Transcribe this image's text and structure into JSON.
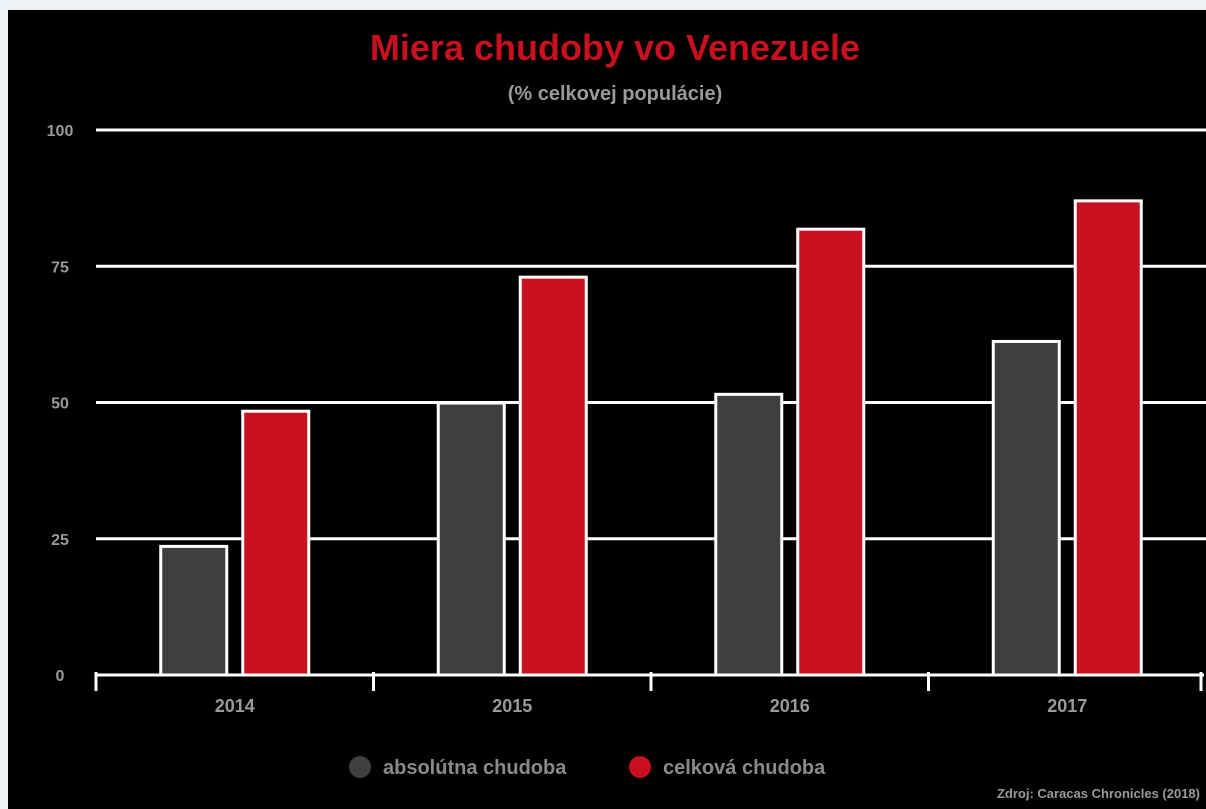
{
  "chart_data": {
    "type": "bar",
    "title": "Miera chudoby vo Venezuele",
    "subtitle": "(% celkovej populácie)",
    "source": "Zdroj: Caracas Chronicles (2018)",
    "categories": [
      "2014",
      "2015",
      "2016",
      "2017"
    ],
    "series": [
      {
        "name": "absolútna chudoba",
        "values": [
          23.6,
          49.9,
          51.5,
          61.2
        ],
        "color": "#3f3f3f"
      },
      {
        "name": "celková chudoba",
        "values": [
          48.4,
          73.0,
          81.8,
          87.0
        ],
        "color": "#c8101e"
      }
    ],
    "ylim": [
      0,
      100
    ],
    "yticks": [
      0,
      25,
      50,
      75,
      100
    ],
    "grid": true,
    "legend_position": "bottom",
    "colors": {
      "background": "#000000",
      "grid": "#ffffff",
      "text": "#9a9a9a",
      "title": "#c8101e"
    }
  }
}
